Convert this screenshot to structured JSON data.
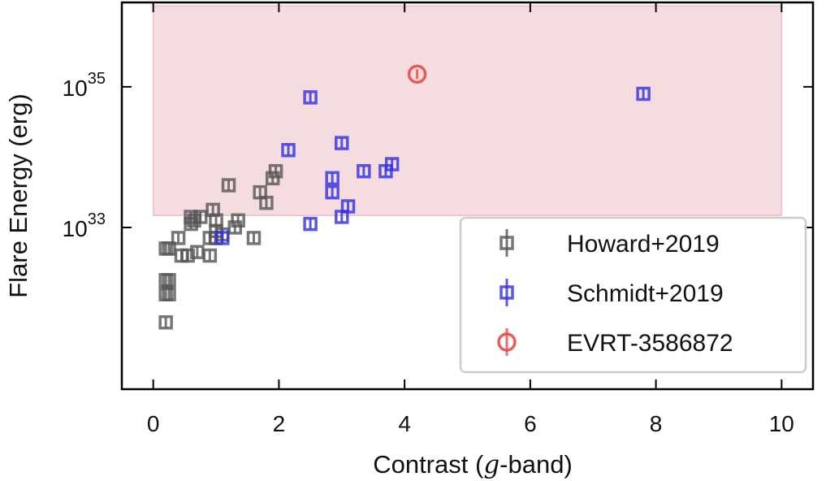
{
  "chart_data": {
    "type": "scatter",
    "xlabel": "Contrast (g-band)",
    "ylabel": "Flare Energy (erg)",
    "xlim": [
      -0.5,
      10.5
    ],
    "ylim": [
      30.7,
      36.2
    ],
    "yscale": "log",
    "x_ticks": [
      0,
      2,
      4,
      6,
      8,
      10
    ],
    "x_tick_labels": [
      "0",
      "2",
      "4",
      "6",
      "8",
      "10"
    ],
    "y_ticks": [
      {
        "exp": 33,
        "base": "10",
        "sup": "33"
      },
      {
        "exp": 35,
        "base": "10",
        "sup": "35"
      }
    ],
    "grid": false,
    "legend_position": "lower-right",
    "shaded_region": {
      "x": [
        0,
        10
      ],
      "log10_y": [
        33.17,
        36.15
      ],
      "color": "#e8b4b8"
    },
    "series": [
      {
        "name": "Howard+2019",
        "marker": "square",
        "color": "#555555",
        "points": [
          [
            0.2,
            32.7
          ],
          [
            0.25,
            32.7
          ],
          [
            0.4,
            32.85
          ],
          [
            0.45,
            32.6
          ],
          [
            0.55,
            32.6
          ],
          [
            0.2,
            32.25
          ],
          [
            0.25,
            32.25
          ],
          [
            0.2,
            32.05
          ],
          [
            0.25,
            32.05
          ],
          [
            0.2,
            31.65
          ],
          [
            0.6,
            33.05
          ],
          [
            0.65,
            33.1
          ],
          [
            0.75,
            33.15
          ],
          [
            0.9,
            32.85
          ],
          [
            1.0,
            32.95
          ],
          [
            1.1,
            32.9
          ],
          [
            0.7,
            32.65
          ],
          [
            0.95,
            33.25
          ],
          [
            1.0,
            33.1
          ],
          [
            1.2,
            33.6
          ],
          [
            1.3,
            33.0
          ],
          [
            1.35,
            33.1
          ],
          [
            0.9,
            32.6
          ],
          [
            1.6,
            32.85
          ],
          [
            1.7,
            33.5
          ],
          [
            1.8,
            33.35
          ],
          [
            1.9,
            33.7
          ],
          [
            1.95,
            33.8
          ],
          [
            1.0,
            32.85
          ],
          [
            0.6,
            33.15
          ]
        ]
      },
      {
        "name": "Schmidt+2019",
        "marker": "square",
        "color": "#3030e0",
        "points": [
          [
            2.5,
            34.85
          ],
          [
            2.15,
            34.1
          ],
          [
            3.0,
            34.2
          ],
          [
            2.85,
            33.7
          ],
          [
            2.85,
            33.5
          ],
          [
            3.35,
            33.8
          ],
          [
            3.7,
            33.8
          ],
          [
            3.8,
            33.9
          ],
          [
            3.1,
            33.3
          ],
          [
            3.0,
            33.15
          ],
          [
            2.5,
            33.05
          ],
          [
            1.1,
            32.85
          ],
          [
            7.8,
            34.9
          ]
        ]
      },
      {
        "name": "EVRT-3586872",
        "marker": "circle",
        "color": "#e84a4a",
        "points": [
          [
            4.2,
            35.18
          ]
        ]
      }
    ]
  }
}
